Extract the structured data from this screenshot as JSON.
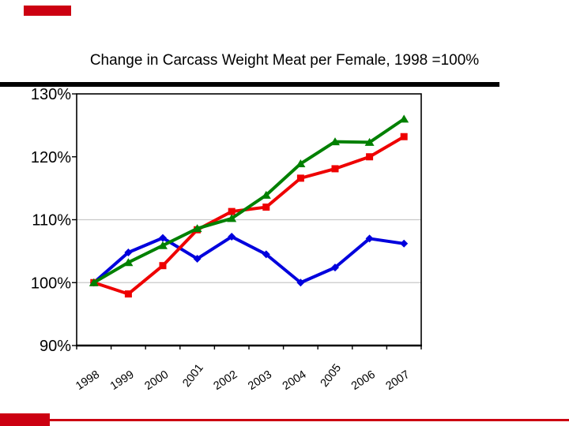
{
  "page": {
    "background": "#ffffff",
    "accent_red": "#cc0011"
  },
  "chart_data": {
    "type": "line",
    "title": "Change in Carcass Weight Meat per Female, 1998 =100%",
    "categories": [
      "1998",
      "1999",
      "2000",
      "2001",
      "2002",
      "2003",
      "2004",
      "2005",
      "2006",
      "2007"
    ],
    "series": [
      {
        "name": "blue-diamond-series",
        "color": "#0000dd",
        "marker": "diamond",
        "values": [
          100,
          104.8,
          107.1,
          103.8,
          107.3,
          104.5,
          100.0,
          102.4,
          107.0,
          106.2
        ]
      },
      {
        "name": "red-square-series",
        "color": "#ee0000",
        "marker": "square",
        "values": [
          100,
          98.2,
          102.7,
          108.4,
          111.3,
          112.0,
          116.6,
          118.1,
          120.0,
          123.2
        ]
      },
      {
        "name": "green-triangle-series",
        "color": "#008000",
        "marker": "triangle",
        "values": [
          100,
          103.2,
          105.9,
          108.6,
          110.2,
          113.9,
          118.9,
          122.4,
          122.3,
          126.0
        ]
      }
    ],
    "ylim": [
      90,
      130
    ],
    "yticks": [
      {
        "value": 90,
        "label": "90%"
      },
      {
        "value": 100,
        "label": "100%"
      },
      {
        "value": 110,
        "label": "110%"
      },
      {
        "value": 120,
        "label": "120%"
      },
      {
        "value": 130,
        "label": "130%"
      }
    ],
    "gridlines": [
      100,
      110
    ],
    "gridline_color": "#c9c9c9",
    "steep_labels": [
      "2001",
      "2005"
    ],
    "legend": "none",
    "xlabel": "",
    "ylabel": ""
  }
}
